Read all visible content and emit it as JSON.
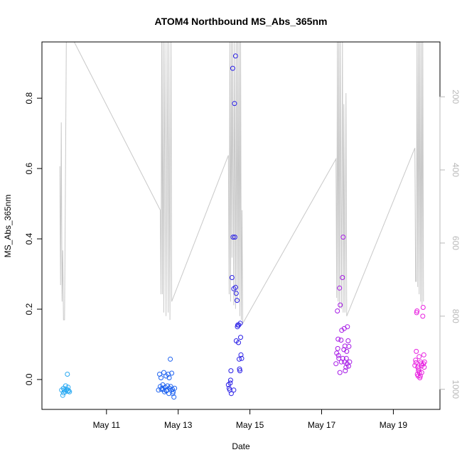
{
  "chart_data": {
    "type": "scatter",
    "title": "ATOM4 Northbound MS_Abs_365nm",
    "xlabel": "Date",
    "ylabel": "MS_Abs_365nm",
    "x_ticks": [
      {
        "day": 11,
        "label": "May 11"
      },
      {
        "day": 13,
        "label": "May 13"
      },
      {
        "day": 15,
        "label": "May 15"
      },
      {
        "day": 17,
        "label": "May 17"
      },
      {
        "day": 19,
        "label": "May 19"
      }
    ],
    "xlim": [
      9.2,
      20.3
    ],
    "y_ticks": [
      0.0,
      0.2,
      0.4,
      0.6,
      0.8
    ],
    "y_tick_labels": [
      "0.0",
      "0.2",
      "0.4",
      "0.6",
      "0.8"
    ],
    "ylim": [
      -0.085,
      0.96
    ],
    "y2_ticks": [
      200,
      400,
      600,
      800,
      1000
    ],
    "y2_tick_labels": [
      "200",
      "400",
      "600",
      "800",
      "1000"
    ],
    "y2lim": [
      1055,
      50
    ],
    "y2_color": "#b8b8b8",
    "grid": false,
    "series": [
      {
        "color": "#29a9f2",
        "points": [
          [
            9.75,
            -0.03
          ],
          [
            9.78,
            -0.045
          ],
          [
            9.8,
            -0.025
          ],
          [
            9.82,
            -0.03
          ],
          [
            9.85,
            -0.035
          ],
          [
            9.86,
            -0.018
          ],
          [
            9.88,
            -0.03
          ],
          [
            9.9,
            -0.028
          ],
          [
            9.92,
            -0.033
          ],
          [
            9.93,
            -0.022
          ],
          [
            9.95,
            -0.032
          ],
          [
            9.97,
            -0.035
          ],
          [
            9.8,
            -0.038
          ],
          [
            9.91,
            0.015
          ]
        ]
      },
      {
        "color": "#1d62f0",
        "points": [
          [
            12.45,
            -0.03
          ],
          [
            12.48,
            0.015
          ],
          [
            12.5,
            -0.02
          ],
          [
            12.52,
            0.005
          ],
          [
            12.55,
            -0.025
          ],
          [
            12.58,
            -0.028
          ],
          [
            12.6,
            0.02
          ],
          [
            12.62,
            -0.035
          ],
          [
            12.64,
            -0.022
          ],
          [
            12.66,
            0.01
          ],
          [
            12.68,
            -0.03
          ],
          [
            12.7,
            -0.018
          ],
          [
            12.72,
            0.015
          ],
          [
            12.74,
            -0.04
          ],
          [
            12.76,
            -0.025
          ],
          [
            12.78,
            0.058
          ],
          [
            12.8,
            -0.03
          ],
          [
            12.82,
            0.018
          ],
          [
            12.84,
            -0.028
          ],
          [
            12.86,
            -0.035
          ],
          [
            12.88,
            -0.05
          ],
          [
            12.9,
            -0.025
          ],
          [
            12.57,
            -0.015
          ],
          [
            12.67,
            -0.032
          ],
          [
            12.75,
            0.005
          ],
          [
            12.85,
            -0.04
          ],
          [
            12.53,
            -0.028
          ],
          [
            12.79,
            -0.02
          ]
        ]
      },
      {
        "color": "#2a1fe6",
        "points": [
          [
            14.4,
            -0.015
          ],
          [
            14.42,
            -0.025
          ],
          [
            14.44,
            -0.03
          ],
          [
            14.45,
            -0.01
          ],
          [
            14.47,
            0.025
          ],
          [
            14.48,
            -0.04
          ],
          [
            14.5,
            0.29
          ],
          [
            14.52,
            0.885
          ],
          [
            14.53,
            0.405
          ],
          [
            14.55,
            -0.03
          ],
          [
            14.57,
            0.785
          ],
          [
            14.58,
            0.405
          ],
          [
            14.6,
            0.92
          ],
          [
            14.6,
            0.262
          ],
          [
            14.62,
            0.245
          ],
          [
            14.64,
            0.225
          ],
          [
            14.65,
            0.15
          ],
          [
            14.66,
            0.155
          ],
          [
            14.68,
            0.105
          ],
          [
            14.7,
            0.058
          ],
          [
            14.71,
            0.03
          ],
          [
            14.73,
            0.16
          ],
          [
            14.74,
            0.12
          ],
          [
            14.75,
            0.07
          ],
          [
            14.77,
            0.06
          ],
          [
            14.55,
            0.258
          ],
          [
            14.62,
            0.11
          ],
          [
            14.69,
            0.155
          ],
          [
            14.72,
            0.025
          ],
          [
            14.46,
            -0.002
          ]
        ]
      },
      {
        "color": "#a61ae6",
        "points": [
          [
            17.4,
            0.045
          ],
          [
            17.42,
            0.075
          ],
          [
            17.44,
            0.195
          ],
          [
            17.46,
            0.115
          ],
          [
            17.48,
            0.06
          ],
          [
            17.5,
            0.26
          ],
          [
            17.52,
            0.212
          ],
          [
            17.54,
            0.112
          ],
          [
            17.56,
            0.14
          ],
          [
            17.58,
            0.29
          ],
          [
            17.6,
            0.405
          ],
          [
            17.62,
            0.085
          ],
          [
            17.64,
            0.05
          ],
          [
            17.66,
            0.025
          ],
          [
            17.68,
            0.035
          ],
          [
            17.7,
            0.08
          ],
          [
            17.72,
            0.15
          ],
          [
            17.74,
            0.11
          ],
          [
            17.76,
            0.094
          ],
          [
            17.78,
            0.05
          ],
          [
            17.45,
            0.088
          ],
          [
            17.55,
            0.05
          ],
          [
            17.63,
            0.145
          ],
          [
            17.71,
            0.045
          ],
          [
            17.47,
            0.068
          ],
          [
            17.59,
            0.06
          ],
          [
            17.65,
            0.095
          ],
          [
            17.51,
            0.02
          ],
          [
            17.69,
            0.06
          ],
          [
            17.75,
            0.038
          ]
        ]
      },
      {
        "color": "#e81ee0",
        "points": [
          [
            19.6,
            0.04
          ],
          [
            19.62,
            0.055
          ],
          [
            19.64,
            0.08
          ],
          [
            19.65,
            0.19
          ],
          [
            19.66,
            0.195
          ],
          [
            19.68,
            0.035
          ],
          [
            19.7,
            0.025
          ],
          [
            19.72,
            0.065
          ],
          [
            19.73,
            0.02
          ],
          [
            19.75,
            0.01
          ],
          [
            19.76,
            0.05
          ],
          [
            19.78,
            0.045
          ],
          [
            19.8,
            0.04
          ],
          [
            19.82,
            0.18
          ],
          [
            19.83,
            0.205
          ],
          [
            19.85,
            0.07
          ],
          [
            19.87,
            0.05
          ],
          [
            19.67,
            0.015
          ],
          [
            19.74,
            0.005
          ],
          [
            19.79,
            0.02
          ],
          [
            19.86,
            0.035
          ],
          [
            19.63,
            0.048
          ],
          [
            19.71,
            0.03
          ],
          [
            19.84,
            0.045
          ],
          [
            19.69,
            0.01
          ]
        ]
      }
    ],
    "secondary_line": {
      "color": "#c8c8c8",
      "points": [
        [
          9.7,
          390
        ],
        [
          9.72,
          715
        ],
        [
          9.74,
          270
        ],
        [
          9.76,
          760
        ],
        [
          9.78,
          620
        ],
        [
          9.8,
          810
        ],
        [
          9.83,
          810
        ],
        [
          9.85,
          520
        ],
        [
          9.88,
          50
        ],
        [
          9.9,
          50
        ],
        [
          10.1,
          50
        ],
        [
          12.5,
          510
        ],
        [
          12.52,
          740
        ],
        [
          12.54,
          50
        ],
        [
          12.56,
          740
        ],
        [
          12.58,
          50
        ],
        [
          12.6,
          790
        ],
        [
          12.63,
          50
        ],
        [
          12.66,
          800
        ],
        [
          12.69,
          50
        ],
        [
          12.72,
          790
        ],
        [
          12.74,
          50
        ],
        [
          12.77,
          810
        ],
        [
          12.8,
          50
        ],
        [
          12.82,
          760
        ],
        [
          14.4,
          360
        ],
        [
          14.42,
          740
        ],
        [
          14.44,
          50
        ],
        [
          14.46,
          760
        ],
        [
          14.48,
          50
        ],
        [
          14.5,
          640
        ],
        [
          14.52,
          50
        ],
        [
          14.55,
          770
        ],
        [
          14.57,
          50
        ],
        [
          14.6,
          780
        ],
        [
          14.62,
          50
        ],
        [
          14.64,
          760
        ],
        [
          14.66,
          50
        ],
        [
          14.68,
          730
        ],
        [
          14.7,
          50
        ],
        [
          14.72,
          800
        ],
        [
          14.74,
          50
        ],
        [
          14.76,
          810
        ],
        [
          14.78,
          510
        ],
        [
          14.8,
          820
        ],
        [
          17.4,
          370
        ],
        [
          17.42,
          750
        ],
        [
          17.44,
          50
        ],
        [
          17.46,
          760
        ],
        [
          17.48,
          50
        ],
        [
          17.5,
          780
        ],
        [
          17.52,
          50
        ],
        [
          17.55,
          780
        ],
        [
          17.58,
          50
        ],
        [
          17.6,
          790
        ],
        [
          17.62,
          220
        ],
        [
          17.65,
          790
        ],
        [
          17.68,
          190
        ],
        [
          17.7,
          800
        ],
        [
          19.6,
          340
        ],
        [
          19.62,
          705
        ],
        [
          19.64,
          705
        ],
        [
          19.66,
          50
        ],
        [
          19.68,
          720
        ],
        [
          19.7,
          50
        ],
        [
          19.72,
          740
        ],
        [
          19.74,
          50
        ],
        [
          19.76,
          760
        ],
        [
          19.78,
          50
        ],
        [
          19.8,
          770
        ],
        [
          19.82,
          50
        ],
        [
          19.84,
          760
        ]
      ]
    }
  }
}
